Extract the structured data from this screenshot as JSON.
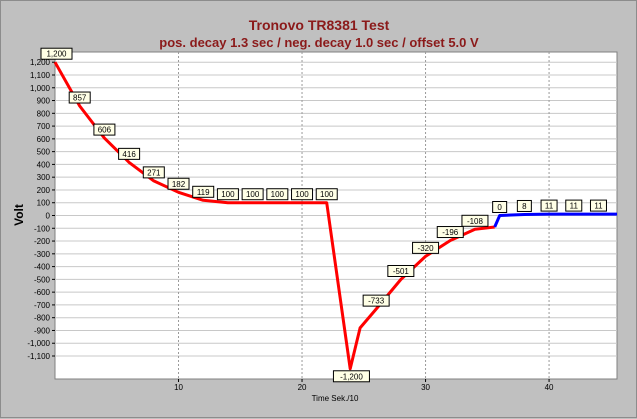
{
  "chart_data": {
    "type": "line",
    "title": "Tronovo TR8381 Test",
    "subtitle": "pos. decay 1.3 sec / neg. decay 1.0 sec / offset 5.0 V",
    "xlabel": "Time Sek./10",
    "ylabel": "Volt",
    "xlim": [
      0,
      45.5
    ],
    "ylim": [
      -1280,
      1280
    ],
    "x_ticks": [
      10,
      20,
      30,
      40
    ],
    "x_tick_labels": [
      "10",
      "20",
      "30",
      "40"
    ],
    "y_ticks": [
      1200,
      1100,
      1000,
      900,
      800,
      700,
      600,
      500,
      400,
      300,
      200,
      100,
      0,
      -100,
      -200,
      -300,
      -400,
      -500,
      -600,
      -700,
      -800,
      -900,
      -1000,
      -1100
    ],
    "y_tick_labels": [
      "1,200",
      "1,100",
      "1,000",
      "900",
      "800",
      "700",
      "600",
      "500",
      "400",
      "300",
      "200",
      "100",
      "0",
      "-100",
      "-200",
      "-300",
      "-400",
      "-500",
      "-600",
      "-700",
      "-800",
      "-900",
      "-1,000",
      "-1,100"
    ],
    "grid": true,
    "series": [
      {
        "color": "#ff0000",
        "x": [
          0,
          2,
          4,
          6,
          8,
          10,
          12,
          14,
          16,
          18,
          20,
          22,
          23.9,
          24.7,
          26,
          28,
          30,
          32,
          34,
          35.6
        ],
        "y": [
          1200,
          857,
          606,
          416,
          271,
          182,
          119,
          100,
          100,
          100,
          100,
          100,
          -1200,
          -880,
          -733,
          -501,
          -320,
          -196,
          -108,
          -90
        ]
      },
      {
        "color": "#0000ff",
        "x": [
          35.6,
          36,
          38,
          40,
          42,
          44,
          45.5
        ],
        "y": [
          -90,
          0,
          8,
          11,
          11,
          11,
          11
        ]
      }
    ],
    "data_labels": [
      {
        "x": 0,
        "y": 1200,
        "text": "1,200"
      },
      {
        "x": 2,
        "y": 857,
        "text": "857"
      },
      {
        "x": 4,
        "y": 606,
        "text": "606"
      },
      {
        "x": 6,
        "y": 416,
        "text": "416"
      },
      {
        "x": 8,
        "y": 271,
        "text": "271"
      },
      {
        "x": 10,
        "y": 182,
        "text": "182"
      },
      {
        "x": 12,
        "y": 119,
        "text": "119"
      },
      {
        "x": 14,
        "y": 100,
        "text": "100"
      },
      {
        "x": 16,
        "y": 100,
        "text": "100"
      },
      {
        "x": 18,
        "y": 100,
        "text": "100"
      },
      {
        "x": 20,
        "y": 100,
        "text": "100"
      },
      {
        "x": 22,
        "y": 100,
        "text": "100"
      },
      {
        "x": 24,
        "y": -1200,
        "text": "-1,200"
      },
      {
        "x": 26,
        "y": -733,
        "text": "-733"
      },
      {
        "x": 28,
        "y": -501,
        "text": "-501"
      },
      {
        "x": 30,
        "y": -320,
        "text": "-320"
      },
      {
        "x": 32,
        "y": -196,
        "text": "-196"
      },
      {
        "x": 34,
        "y": -108,
        "text": "-108"
      },
      {
        "x": 36,
        "y": 0,
        "text": "0"
      },
      {
        "x": 38,
        "y": 8,
        "text": "8"
      },
      {
        "x": 40,
        "y": 11,
        "text": "11"
      },
      {
        "x": 42,
        "y": 11,
        "text": "11"
      },
      {
        "x": 44,
        "y": 11,
        "text": "11"
      }
    ]
  }
}
